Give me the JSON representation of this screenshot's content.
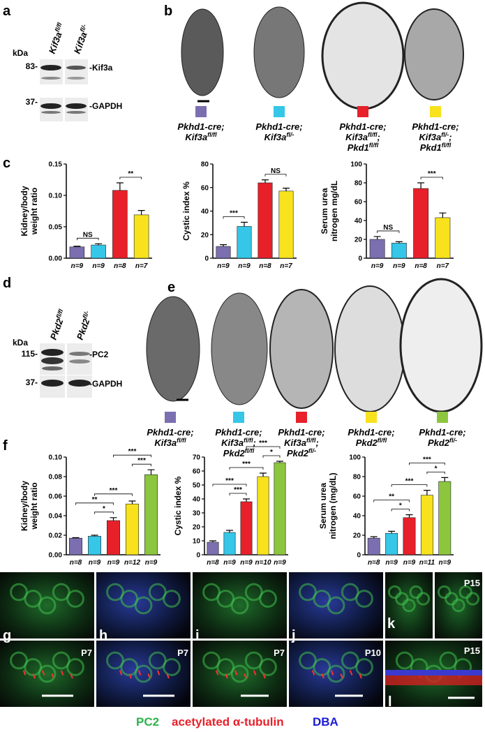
{
  "panel_labels": [
    "a",
    "b",
    "c",
    "d",
    "e",
    "f",
    "g",
    "h",
    "i",
    "j",
    "k",
    "l"
  ],
  "blot_a": {
    "unit": "kDa",
    "lanes": [
      [
        {
          "t": "Kif3a"
        },
        {
          "sup": "fl/fl"
        }
      ],
      [
        {
          "t": "Kif3a"
        },
        {
          "sup": "fl/-"
        }
      ]
    ],
    "markers": [
      "83-",
      "37-"
    ],
    "bands": [
      "-Kif3a",
      "-GAPDH"
    ]
  },
  "blot_d": {
    "unit": "kDa",
    "lanes": [
      [
        {
          "t": "Pkd2"
        },
        {
          "sup": "fl/fl"
        }
      ],
      [
        {
          "t": "Pkd2"
        },
        {
          "sup": "fl/-"
        }
      ]
    ],
    "markers": [
      "115-",
      "37-"
    ],
    "bands": [
      "-PC2",
      "-GAPDH"
    ]
  },
  "genotypes_b": [
    {
      "color": "#7b6fb0",
      "lines": [
        [
          {
            "t": "Pkhd1-cre;"
          }
        ],
        [
          {
            "t": "Kif3a"
          },
          {
            "sup": "fl/fl"
          }
        ]
      ]
    },
    {
      "color": "#35c6e8",
      "lines": [
        [
          {
            "t": "Pkhd1-cre;"
          }
        ],
        [
          {
            "t": "Kif3a"
          },
          {
            "sup": "fl/-"
          }
        ]
      ]
    },
    {
      "color": "#e8202a",
      "lines": [
        [
          {
            "t": "Pkhd1-cre;"
          }
        ],
        [
          {
            "t": "Kif3a"
          },
          {
            "sup": "fl/fl"
          },
          {
            "t": ";"
          }
        ],
        [
          {
            "t": "Pkd1"
          },
          {
            "sup": "fl/fl"
          }
        ]
      ]
    },
    {
      "color": "#f7e21d",
      "lines": [
        [
          {
            "t": "Pkhd1-cre;"
          }
        ],
        [
          {
            "t": "Kif3a"
          },
          {
            "sup": "fl/-"
          },
          {
            "t": ";"
          }
        ],
        [
          {
            "t": "Pkd1"
          },
          {
            "sup": "fl/fl"
          }
        ]
      ]
    }
  ],
  "genotypes_e": [
    {
      "color": "#7b6fb0",
      "lines": [
        [
          {
            "t": "Pkhd1-cre;"
          }
        ],
        [
          {
            "t": "Kif3a"
          },
          {
            "sup": "fl/fl"
          }
        ]
      ]
    },
    {
      "color": "#35c6e8",
      "lines": [
        [
          {
            "t": "Pkhd1-cre;"
          }
        ],
        [
          {
            "t": "Kif3a"
          },
          {
            "sup": "fl/fl"
          },
          {
            "t": ";"
          }
        ],
        [
          {
            "t": "Pkd2"
          },
          {
            "sup": "fl/fl"
          }
        ]
      ]
    },
    {
      "color": "#e8202a",
      "lines": [
        [
          {
            "t": "Pkhd1-cre;"
          }
        ],
        [
          {
            "t": "Kif3a"
          },
          {
            "sup": "fl/fl"
          },
          {
            "t": ";"
          }
        ],
        [
          {
            "t": "Pkd2"
          },
          {
            "sup": "fl/-"
          }
        ]
      ]
    },
    {
      "color": "#f7e21d",
      "lines": [
        [
          {
            "t": "Pkhd1-cre;"
          }
        ],
        [
          {
            "t": "Pkd2"
          },
          {
            "sup": "fl/fl"
          }
        ]
      ]
    },
    {
      "color": "#8cc63f",
      "lines": [
        [
          {
            "t": "Pkhd1-cre;"
          }
        ],
        [
          {
            "t": "Pkd2"
          },
          {
            "sup": "fl/-"
          }
        ]
      ]
    }
  ],
  "chart_data": [
    {
      "type": "bar",
      "ylabel": [
        "Kidney/body",
        "weight ratio"
      ],
      "categories": [
        "n=9",
        "n=9",
        "n=8",
        "n=7"
      ],
      "values": [
        0.018,
        0.021,
        0.108,
        0.069
      ],
      "errors": [
        0.001,
        0.002,
        0.012,
        0.007
      ],
      "colors": [
        "#7b6fb0",
        "#35c6e8",
        "#e8202a",
        "#f7e21d"
      ],
      "ylim": [
        0,
        0.15
      ],
      "yticks": [
        {
          "value": 0,
          "label": "0.00"
        },
        {
          "value": 0.05,
          "label": "0.05"
        },
        {
          "value": 0.1,
          "label": "0.10"
        },
        {
          "value": 0.15,
          "label": "0.15"
        }
      ],
      "brackets": [
        {
          "compare": [
            0,
            1
          ],
          "label": "NS"
        },
        {
          "compare": [
            2,
            3
          ],
          "label": "**"
        }
      ]
    },
    {
      "type": "bar",
      "ylabel": [
        "Cystic index %"
      ],
      "categories": [
        "n=9",
        "n=9",
        "n=8",
        "n=7"
      ],
      "values": [
        10,
        27,
        64,
        57
      ],
      "errors": [
        1.5,
        3.5,
        2.5,
        2.5
      ],
      "colors": [
        "#7b6fb0",
        "#35c6e8",
        "#e8202a",
        "#f7e21d"
      ],
      "ylim": [
        0,
        80
      ],
      "yticks": [
        0,
        20,
        40,
        60,
        80
      ],
      "brackets": [
        {
          "compare": [
            0,
            1
          ],
          "label": "***"
        },
        {
          "compare": [
            2,
            3
          ],
          "label": "NS"
        }
      ]
    },
    {
      "type": "bar",
      "ylabel": [
        "Serum urea",
        "nitrogen mg/dL"
      ],
      "categories": [
        "n=9",
        "n=9",
        "n=8",
        "n=7"
      ],
      "values": [
        20,
        16,
        74,
        43
      ],
      "errors": [
        3,
        1.5,
        6,
        5
      ],
      "colors": [
        "#7b6fb0",
        "#35c6e8",
        "#e8202a",
        "#f7e21d"
      ],
      "ylim": [
        0,
        100
      ],
      "yticks": [
        0,
        20,
        40,
        60,
        80,
        100
      ],
      "brackets": [
        {
          "compare": [
            0,
            1
          ],
          "label": "NS"
        },
        {
          "compare": [
            2,
            3
          ],
          "label": "***"
        }
      ]
    },
    {
      "type": "bar",
      "ylabel": [
        "Kidney/body",
        "weight ratio"
      ],
      "categories": [
        "n=8",
        "n=9",
        "n=9",
        "n=12",
        "n=9"
      ],
      "values": [
        0.017,
        0.019,
        0.035,
        0.052,
        0.082
      ],
      "errors": [
        0.0005,
        0.001,
        0.003,
        0.003,
        0.005
      ],
      "colors": [
        "#7b6fb0",
        "#35c6e8",
        "#e8202a",
        "#f7e21d",
        "#8cc63f"
      ],
      "ylim": [
        0,
        0.1
      ],
      "yticks": [
        {
          "value": 0,
          "label": "0.00"
        },
        {
          "value": 0.02,
          "label": "0.02"
        },
        {
          "value": 0.04,
          "label": "0.04"
        },
        {
          "value": 0.06,
          "label": "0.06"
        },
        {
          "value": 0.08,
          "label": "0.08"
        },
        {
          "value": 0.1,
          "label": "0.10"
        }
      ],
      "brackets": [
        {
          "compare": [
            1,
            2
          ],
          "label": "*"
        },
        {
          "compare": [
            0,
            2
          ],
          "label": "**"
        },
        {
          "compare": [
            1,
            3
          ],
          "label": "***"
        },
        {
          "compare": [
            3,
            4
          ],
          "label": "***"
        },
        {
          "compare": [
            2,
            4
          ],
          "label": "***"
        }
      ]
    },
    {
      "type": "bar",
      "ylabel": [
        "Cystic index %"
      ],
      "categories": [
        "n=8",
        "n=9",
        "n=9",
        "n=10",
        "n=9"
      ],
      "values": [
        9,
        16,
        38,
        56,
        66
      ],
      "errors": [
        1,
        1.5,
        2,
        2.5,
        1
      ],
      "colors": [
        "#7b6fb0",
        "#35c6e8",
        "#e8202a",
        "#f7e21d",
        "#8cc63f"
      ],
      "ylim": [
        0,
        70
      ],
      "yticks": [
        0,
        10,
        20,
        30,
        40,
        50,
        60,
        70
      ],
      "brackets": [
        {
          "compare": [
            1,
            2
          ],
          "label": "***"
        },
        {
          "compare": [
            0,
            2
          ],
          "label": "***"
        },
        {
          "compare": [
            1,
            3
          ],
          "label": "***"
        },
        {
          "compare": [
            3,
            4
          ],
          "label": "*"
        },
        {
          "compare": [
            2,
            4
          ],
          "label": "***"
        }
      ]
    },
    {
      "type": "bar",
      "ylabel": [
        "Serum urea",
        "nitrogen (mg/dL)"
      ],
      "categories": [
        "n=8",
        "n=9",
        "n=9",
        "n=11",
        "n=9"
      ],
      "values": [
        17,
        22,
        38,
        61,
        75
      ],
      "errors": [
        1.5,
        2,
        3,
        5,
        4
      ],
      "colors": [
        "#7b6fb0",
        "#35c6e8",
        "#e8202a",
        "#f7e21d",
        "#8cc63f"
      ],
      "ylim": [
        0,
        100
      ],
      "yticks": [
        0,
        20,
        40,
        60,
        80,
        100
      ],
      "brackets": [
        {
          "compare": [
            1,
            2
          ],
          "label": "*"
        },
        {
          "compare": [
            0,
            2
          ],
          "label": "**"
        },
        {
          "compare": [
            1,
            3
          ],
          "label": "***"
        },
        {
          "compare": [
            3,
            4
          ],
          "label": "*"
        },
        {
          "compare": [
            2,
            4
          ],
          "label": "***"
        }
      ]
    }
  ],
  "stage_labels": [
    "P7",
    "P7",
    "P7",
    "P10",
    "P15",
    "P15"
  ],
  "stain_legend": [
    {
      "text": "PC2",
      "color": "#2db34a"
    },
    {
      "text": "acetylated α-tubulin",
      "color": "#e8202a"
    },
    {
      "text": "DBA",
      "color": "#1a1ad6"
    }
  ]
}
